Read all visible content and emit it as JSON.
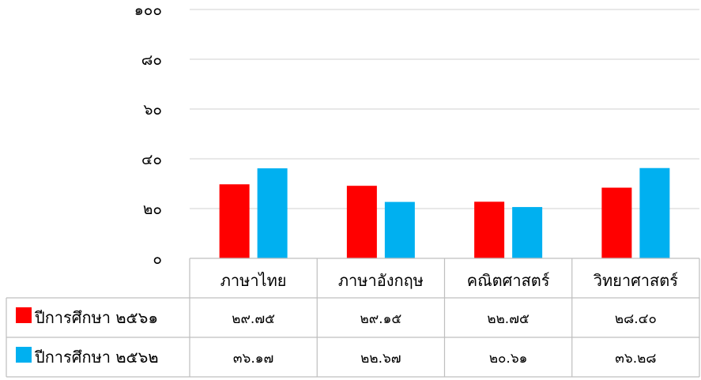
{
  "chart_data": {
    "type": "bar",
    "title": "",
    "xlabel": "",
    "ylabel": "",
    "ylim": [
      0,
      100
    ],
    "y_ticks": [
      {
        "value": 0,
        "label": "๐"
      },
      {
        "value": 20,
        "label": "๒๐"
      },
      {
        "value": 40,
        "label": "๔๐"
      },
      {
        "value": 60,
        "label": "๖๐"
      },
      {
        "value": 80,
        "label": "๘๐"
      },
      {
        "value": 100,
        "label": "๑๐๐"
      }
    ],
    "grid": true,
    "legend": "data-table",
    "categories": [
      "ภาษาไทย",
      "ภาษาอังกฤษ",
      "คณิตศาสตร์",
      "วิทยาศาสตร์"
    ],
    "series": [
      {
        "name": "ปีการศึกษา ๒๕๖๑",
        "color": "#ff0000",
        "values": [
          29.75,
          29.15,
          22.75,
          28.4
        ],
        "value_labels": [
          "๒๙.๗๕",
          "๒๙.๑๕",
          "๒๒.๗๕",
          "๒๘.๔๐"
        ]
      },
      {
        "name": "ปีการศึกษา ๒๕๖๒",
        "color": "#00b0f0",
        "values": [
          36.17,
          22.67,
          20.61,
          36.28
        ],
        "value_labels": [
          "๓๖.๑๗",
          "๒๒.๖๗",
          "๒๐.๖๑",
          "๓๖.๒๘"
        ]
      }
    ]
  }
}
